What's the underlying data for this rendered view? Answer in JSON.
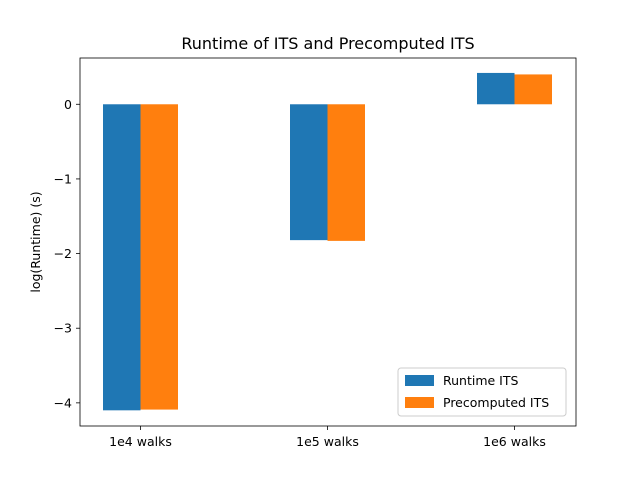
{
  "chart_data": {
    "type": "bar",
    "title": "Runtime of ITS and Precomputed ITS",
    "xlabel": "",
    "ylabel": "log(Runtime) (s)",
    "categories": [
      "1e4 walks",
      "1e5 walks",
      "1e6 walks"
    ],
    "series": [
      {
        "name": "Runtime ITS",
        "color": "#1f77b4",
        "values": [
          -4.1,
          -1.82,
          0.42
        ]
      },
      {
        "name": "Precomputed ITS",
        "color": "#ff7f0e",
        "values": [
          -4.09,
          -1.83,
          0.4
        ]
      }
    ],
    "ylim": [
      -4.31,
      0.62
    ],
    "yticks": [
      0,
      -1,
      -2,
      -3,
      -4
    ],
    "ytick_labels": [
      "0",
      "−1",
      "−2",
      "−3",
      "−4"
    ],
    "grid": false,
    "legend_position": "lower-right"
  }
}
